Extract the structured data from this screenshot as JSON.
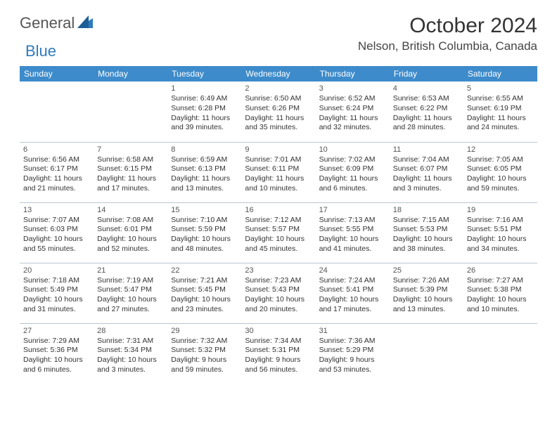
{
  "logo": {
    "general": "General",
    "blue": "Blue"
  },
  "title": "October 2024",
  "location": "Nelson, British Columbia, Canada",
  "columns": [
    "Sunday",
    "Monday",
    "Tuesday",
    "Wednesday",
    "Thursday",
    "Friday",
    "Saturday"
  ],
  "colors": {
    "header_bg": "#3d8bcb",
    "header_fg": "#ffffff",
    "row_border": "#b9c6d3",
    "logo_blue": "#2f7bbf",
    "logo_gray": "#555555",
    "text": "#333333"
  },
  "weeks": [
    [
      null,
      null,
      {
        "n": "1",
        "sr": "Sunrise: 6:49 AM",
        "ss": "Sunset: 6:28 PM",
        "d1": "Daylight: 11 hours",
        "d2": "and 39 minutes."
      },
      {
        "n": "2",
        "sr": "Sunrise: 6:50 AM",
        "ss": "Sunset: 6:26 PM",
        "d1": "Daylight: 11 hours",
        "d2": "and 35 minutes."
      },
      {
        "n": "3",
        "sr": "Sunrise: 6:52 AM",
        "ss": "Sunset: 6:24 PM",
        "d1": "Daylight: 11 hours",
        "d2": "and 32 minutes."
      },
      {
        "n": "4",
        "sr": "Sunrise: 6:53 AM",
        "ss": "Sunset: 6:22 PM",
        "d1": "Daylight: 11 hours",
        "d2": "and 28 minutes."
      },
      {
        "n": "5",
        "sr": "Sunrise: 6:55 AM",
        "ss": "Sunset: 6:19 PM",
        "d1": "Daylight: 11 hours",
        "d2": "and 24 minutes."
      }
    ],
    [
      {
        "n": "6",
        "sr": "Sunrise: 6:56 AM",
        "ss": "Sunset: 6:17 PM",
        "d1": "Daylight: 11 hours",
        "d2": "and 21 minutes."
      },
      {
        "n": "7",
        "sr": "Sunrise: 6:58 AM",
        "ss": "Sunset: 6:15 PM",
        "d1": "Daylight: 11 hours",
        "d2": "and 17 minutes."
      },
      {
        "n": "8",
        "sr": "Sunrise: 6:59 AM",
        "ss": "Sunset: 6:13 PM",
        "d1": "Daylight: 11 hours",
        "d2": "and 13 minutes."
      },
      {
        "n": "9",
        "sr": "Sunrise: 7:01 AM",
        "ss": "Sunset: 6:11 PM",
        "d1": "Daylight: 11 hours",
        "d2": "and 10 minutes."
      },
      {
        "n": "10",
        "sr": "Sunrise: 7:02 AM",
        "ss": "Sunset: 6:09 PM",
        "d1": "Daylight: 11 hours",
        "d2": "and 6 minutes."
      },
      {
        "n": "11",
        "sr": "Sunrise: 7:04 AM",
        "ss": "Sunset: 6:07 PM",
        "d1": "Daylight: 11 hours",
        "d2": "and 3 minutes."
      },
      {
        "n": "12",
        "sr": "Sunrise: 7:05 AM",
        "ss": "Sunset: 6:05 PM",
        "d1": "Daylight: 10 hours",
        "d2": "and 59 minutes."
      }
    ],
    [
      {
        "n": "13",
        "sr": "Sunrise: 7:07 AM",
        "ss": "Sunset: 6:03 PM",
        "d1": "Daylight: 10 hours",
        "d2": "and 55 minutes."
      },
      {
        "n": "14",
        "sr": "Sunrise: 7:08 AM",
        "ss": "Sunset: 6:01 PM",
        "d1": "Daylight: 10 hours",
        "d2": "and 52 minutes."
      },
      {
        "n": "15",
        "sr": "Sunrise: 7:10 AM",
        "ss": "Sunset: 5:59 PM",
        "d1": "Daylight: 10 hours",
        "d2": "and 48 minutes."
      },
      {
        "n": "16",
        "sr": "Sunrise: 7:12 AM",
        "ss": "Sunset: 5:57 PM",
        "d1": "Daylight: 10 hours",
        "d2": "and 45 minutes."
      },
      {
        "n": "17",
        "sr": "Sunrise: 7:13 AM",
        "ss": "Sunset: 5:55 PM",
        "d1": "Daylight: 10 hours",
        "d2": "and 41 minutes."
      },
      {
        "n": "18",
        "sr": "Sunrise: 7:15 AM",
        "ss": "Sunset: 5:53 PM",
        "d1": "Daylight: 10 hours",
        "d2": "and 38 minutes."
      },
      {
        "n": "19",
        "sr": "Sunrise: 7:16 AM",
        "ss": "Sunset: 5:51 PM",
        "d1": "Daylight: 10 hours",
        "d2": "and 34 minutes."
      }
    ],
    [
      {
        "n": "20",
        "sr": "Sunrise: 7:18 AM",
        "ss": "Sunset: 5:49 PM",
        "d1": "Daylight: 10 hours",
        "d2": "and 31 minutes."
      },
      {
        "n": "21",
        "sr": "Sunrise: 7:19 AM",
        "ss": "Sunset: 5:47 PM",
        "d1": "Daylight: 10 hours",
        "d2": "and 27 minutes."
      },
      {
        "n": "22",
        "sr": "Sunrise: 7:21 AM",
        "ss": "Sunset: 5:45 PM",
        "d1": "Daylight: 10 hours",
        "d2": "and 23 minutes."
      },
      {
        "n": "23",
        "sr": "Sunrise: 7:23 AM",
        "ss": "Sunset: 5:43 PM",
        "d1": "Daylight: 10 hours",
        "d2": "and 20 minutes."
      },
      {
        "n": "24",
        "sr": "Sunrise: 7:24 AM",
        "ss": "Sunset: 5:41 PM",
        "d1": "Daylight: 10 hours",
        "d2": "and 17 minutes."
      },
      {
        "n": "25",
        "sr": "Sunrise: 7:26 AM",
        "ss": "Sunset: 5:39 PM",
        "d1": "Daylight: 10 hours",
        "d2": "and 13 minutes."
      },
      {
        "n": "26",
        "sr": "Sunrise: 7:27 AM",
        "ss": "Sunset: 5:38 PM",
        "d1": "Daylight: 10 hours",
        "d2": "and 10 minutes."
      }
    ],
    [
      {
        "n": "27",
        "sr": "Sunrise: 7:29 AM",
        "ss": "Sunset: 5:36 PM",
        "d1": "Daylight: 10 hours",
        "d2": "and 6 minutes."
      },
      {
        "n": "28",
        "sr": "Sunrise: 7:31 AM",
        "ss": "Sunset: 5:34 PM",
        "d1": "Daylight: 10 hours",
        "d2": "and 3 minutes."
      },
      {
        "n": "29",
        "sr": "Sunrise: 7:32 AM",
        "ss": "Sunset: 5:32 PM",
        "d1": "Daylight: 9 hours",
        "d2": "and 59 minutes."
      },
      {
        "n": "30",
        "sr": "Sunrise: 7:34 AM",
        "ss": "Sunset: 5:31 PM",
        "d1": "Daylight: 9 hours",
        "d2": "and 56 minutes."
      },
      {
        "n": "31",
        "sr": "Sunrise: 7:36 AM",
        "ss": "Sunset: 5:29 PM",
        "d1": "Daylight: 9 hours",
        "d2": "and 53 minutes."
      },
      null,
      null
    ]
  ]
}
